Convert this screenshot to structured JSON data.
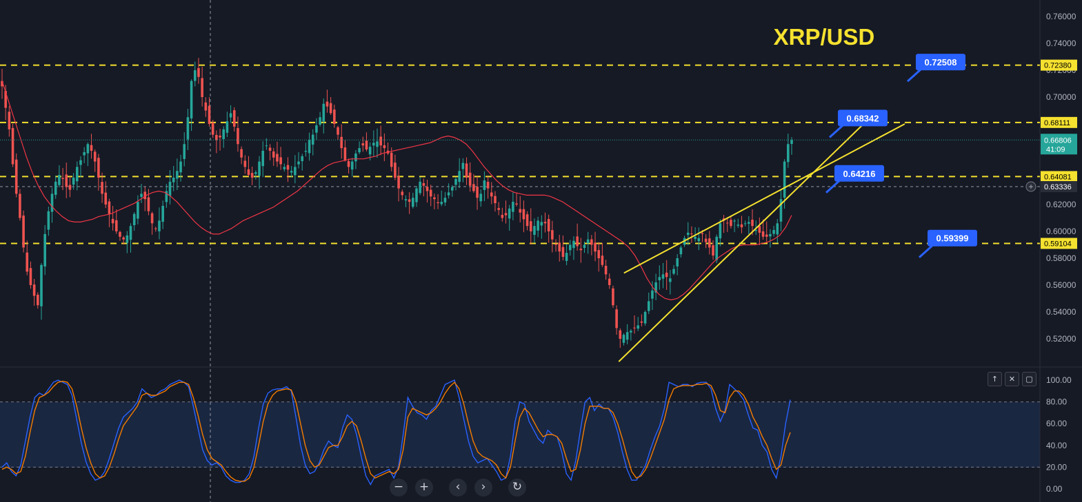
{
  "chart_data": {
    "type": "candlestick",
    "title": "XRP/USD",
    "y_axis": {
      "ticks": [
        "0.76000",
        "0.74000",
        "0.72000",
        "0.70000",
        "0.68000",
        "0.66000",
        "0.64000",
        "0.62000",
        "0.60000",
        "0.58000",
        "0.56000",
        "0.54000",
        "0.52000"
      ],
      "ylim": [
        0.505,
        0.768
      ]
    },
    "levels": [
      {
        "label": "0.72380",
        "value": 0.7238
      },
      {
        "label": "0.68111",
        "value": 0.68111
      },
      {
        "label": "0.64081",
        "value": 0.64081
      },
      {
        "label": "0.59104",
        "value": 0.59104
      }
    ],
    "current_price": {
      "value": "0.66806",
      "countdown": "41:09"
    },
    "crosshair_price": "0.63336",
    "callouts": [
      {
        "label": "0.72508",
        "value": 0.72508
      },
      {
        "label": "0.68342",
        "value": 0.68342
      },
      {
        "label": "0.64216",
        "value": 0.64216
      },
      {
        "label": "0.59399",
        "value": 0.59399
      }
    ],
    "channel": {
      "upper": [
        [
          0.6,
          0.569
        ],
        [
          0.87,
          0.68
        ]
      ],
      "lower": [
        [
          0.595,
          0.503
        ],
        [
          0.833,
          0.682
        ]
      ]
    },
    "series": [
      {
        "name": "price",
        "color_up": "#26a69a",
        "color_down": "#ef5350",
        "values": [
          0.708,
          0.692,
          0.676,
          0.65,
          0.628,
          0.61,
          0.588,
          0.57,
          0.56,
          0.552,
          0.545,
          0.575,
          0.598,
          0.615,
          0.628,
          0.637,
          0.642,
          0.639,
          0.633,
          0.631,
          0.64,
          0.648,
          0.653,
          0.659,
          0.665,
          0.66,
          0.652,
          0.64,
          0.628,
          0.62,
          0.613,
          0.606,
          0.6,
          0.596,
          0.594,
          0.597,
          0.604,
          0.613,
          0.622,
          0.628,
          0.624,
          0.615,
          0.606,
          0.602,
          0.608,
          0.619,
          0.63,
          0.637,
          0.64,
          0.645,
          0.652,
          0.665,
          0.685,
          0.712,
          0.72,
          0.715,
          0.7,
          0.69,
          0.68,
          0.672,
          0.668,
          0.67,
          0.676,
          0.682,
          0.688,
          0.678,
          0.665,
          0.655,
          0.648,
          0.642,
          0.64,
          0.644,
          0.652,
          0.66,
          0.664,
          0.66,
          0.655,
          0.652,
          0.65,
          0.648,
          0.646,
          0.645,
          0.648,
          0.652,
          0.656,
          0.66,
          0.668,
          0.672,
          0.679,
          0.685,
          0.695,
          0.693,
          0.688,
          0.68,
          0.672,
          0.662,
          0.653,
          0.648,
          0.652,
          0.658,
          0.662,
          0.664,
          0.661,
          0.663,
          0.666,
          0.667,
          0.664,
          0.662,
          0.658,
          0.648,
          0.64,
          0.632,
          0.627,
          0.624,
          0.622,
          0.625,
          0.632,
          0.637,
          0.634,
          0.63,
          0.626,
          0.624,
          0.621,
          0.622,
          0.625,
          0.629,
          0.633,
          0.639,
          0.645,
          0.651,
          0.64,
          0.634,
          0.63,
          0.625,
          0.628,
          0.638,
          0.632,
          0.626,
          0.621,
          0.616,
          0.61,
          0.612,
          0.617,
          0.622,
          0.62,
          0.614,
          0.609,
          0.604,
          0.6,
          0.604,
          0.608,
          0.607,
          0.606,
          0.6,
          0.594,
          0.59,
          0.585,
          0.581,
          0.584,
          0.59,
          0.593,
          0.589,
          0.586,
          0.59,
          0.594,
          0.59,
          0.585,
          0.58,
          0.575,
          0.568,
          0.56,
          0.545,
          0.528,
          0.52,
          0.523,
          0.525,
          0.526,
          0.528,
          0.53,
          0.532,
          0.54,
          0.548,
          0.556,
          0.562,
          0.566,
          0.568,
          0.566,
          0.565,
          0.572,
          0.58,
          0.588,
          0.595,
          0.599,
          0.598,
          0.596,
          0.595,
          0.598,
          0.592,
          0.588,
          0.582,
          0.596,
          0.606,
          0.608,
          0.606,
          0.604,
          0.608,
          0.605,
          0.603,
          0.606,
          0.607,
          0.604,
          0.601,
          0.599,
          0.596,
          0.596,
          0.598,
          0.601,
          0.606,
          0.624,
          0.652,
          0.665,
          0.668
        ]
      },
      {
        "name": "moving average",
        "color": "#f23645",
        "values": [
          0.712,
          0.698,
          0.684,
          0.67,
          0.656,
          0.644,
          0.634,
          0.626,
          0.62,
          0.615,
          0.611,
          0.608,
          0.607,
          0.607,
          0.608,
          0.609,
          0.611,
          0.612,
          0.613,
          0.615,
          0.617,
          0.619,
          0.621,
          0.624,
          0.627,
          0.629,
          0.63,
          0.629,
          0.626,
          0.622,
          0.617,
          0.612,
          0.607,
          0.603,
          0.6,
          0.598,
          0.598,
          0.6,
          0.602,
          0.605,
          0.608,
          0.61,
          0.612,
          0.614,
          0.616,
          0.618,
          0.621,
          0.624,
          0.627,
          0.63,
          0.634,
          0.638,
          0.642,
          0.646,
          0.649,
          0.651,
          0.652,
          0.653,
          0.654,
          0.654,
          0.654,
          0.655,
          0.656,
          0.658,
          0.659,
          0.66,
          0.661,
          0.662,
          0.663,
          0.664,
          0.665,
          0.666,
          0.668,
          0.67,
          0.671,
          0.67,
          0.668,
          0.665,
          0.66,
          0.654,
          0.648,
          0.643,
          0.638,
          0.634,
          0.631,
          0.629,
          0.628,
          0.627,
          0.627,
          0.627,
          0.627,
          0.626,
          0.624,
          0.622,
          0.619,
          0.616,
          0.613,
          0.61,
          0.607,
          0.604,
          0.601,
          0.598,
          0.595,
          0.592,
          0.588,
          0.582,
          0.574,
          0.565,
          0.558,
          0.553,
          0.55,
          0.549,
          0.55,
          0.553,
          0.557,
          0.562,
          0.567,
          0.572,
          0.577,
          0.581,
          0.584,
          0.587,
          0.589,
          0.59,
          0.59,
          0.59,
          0.591,
          0.592,
          0.594,
          0.597,
          0.603,
          0.612
        ]
      }
    ],
    "oscillator": {
      "ticks": [
        "100.00",
        "80.00",
        "60.00",
        "40.00",
        "20.00",
        "0.00"
      ],
      "ylim": [
        0,
        100
      ],
      "band": [
        20,
        80
      ],
      "series": [
        {
          "name": "%K",
          "color": "#2962ff",
          "values": [
            20,
            24,
            16,
            12,
            22,
            44,
            66,
            84,
            88,
            86,
            92,
            98,
            100,
            98,
            96,
            86,
            64,
            42,
            25,
            14,
            8,
            10,
            16,
            28,
            42,
            56,
            66,
            70,
            74,
            80,
            92,
            88,
            84,
            86,
            90,
            92,
            96,
            98,
            100,
            98,
            94,
            76,
            56,
            36,
            26,
            22,
            24,
            20,
            12,
            8,
            6,
            6,
            8,
            14,
            30,
            56,
            78,
            88,
            91,
            92,
            92,
            94,
            90,
            66,
            40,
            22,
            14,
            16,
            24,
            36,
            44,
            40,
            38,
            56,
            68,
            64,
            50,
            30,
            12,
            4,
            12,
            14,
            16,
            18,
            10,
            20,
            50,
            84,
            76,
            70,
            68,
            64,
            72,
            76,
            86,
            96,
            98,
            100,
            84,
            64,
            44,
            30,
            24,
            26,
            28,
            22,
            16,
            8,
            10,
            30,
            62,
            80,
            78,
            62,
            54,
            46,
            42,
            54,
            50,
            48,
            34,
            14,
            8,
            26,
            54,
            80,
            84,
            72,
            78,
            74,
            74,
            66,
            52,
            34,
            18,
            8,
            8,
            14,
            22,
            36,
            48,
            58,
            74,
            98,
            96,
            94,
            96,
            96,
            94,
            97,
            98,
            98,
            92,
            74,
            62,
            72,
            96,
            92,
            88,
            82,
            68,
            56,
            54,
            40,
            34,
            18,
            10,
            30,
            60,
            82
          ]
        },
        {
          "name": "%D",
          "color": "#f57c00",
          "values": [
            18,
            20,
            18,
            14,
            16,
            30,
            52,
            72,
            84,
            86,
            89,
            94,
            98,
            99,
            98,
            92,
            76,
            56,
            38,
            24,
            14,
            10,
            12,
            20,
            32,
            46,
            58,
            64,
            70,
            76,
            86,
            88,
            86,
            86,
            88,
            90,
            94,
            96,
            98,
            98,
            96,
            84,
            68,
            50,
            36,
            28,
            25,
            22,
            16,
            11,
            8,
            7,
            7,
            10,
            20,
            40,
            62,
            78,
            86,
            90,
            91,
            92,
            91,
            80,
            60,
            40,
            26,
            20,
            22,
            30,
            38,
            40,
            40,
            48,
            58,
            62,
            58,
            44,
            28,
            14,
            10,
            12,
            14,
            16,
            14,
            18,
            36,
            66,
            74,
            72,
            70,
            68,
            70,
            74,
            80,
            88,
            94,
            98,
            92,
            78,
            60,
            44,
            34,
            30,
            28,
            26,
            22,
            14,
            10,
            20,
            44,
            66,
            74,
            70,
            62,
            54,
            48,
            50,
            50,
            48,
            42,
            28,
            16,
            18,
            36,
            60,
            76,
            76,
            76,
            74,
            74,
            70,
            60,
            46,
            30,
            16,
            10,
            12,
            18,
            28,
            40,
            52,
            64,
            82,
            92,
            94,
            95,
            95,
            95,
            96,
            96,
            97,
            95,
            86,
            72,
            70,
            84,
            90,
            90,
            86,
            78,
            66,
            58,
            48,
            40,
            28,
            18,
            22,
            40,
            52
          ]
        }
      ]
    }
  },
  "controls": {
    "zoom_out": "−",
    "zoom_in": "+",
    "scroll_left": "‹",
    "scroll_right": "›",
    "reset": "↻",
    "pane_up": "↑",
    "pane_close": "✕",
    "pane_maximize": "▢"
  }
}
